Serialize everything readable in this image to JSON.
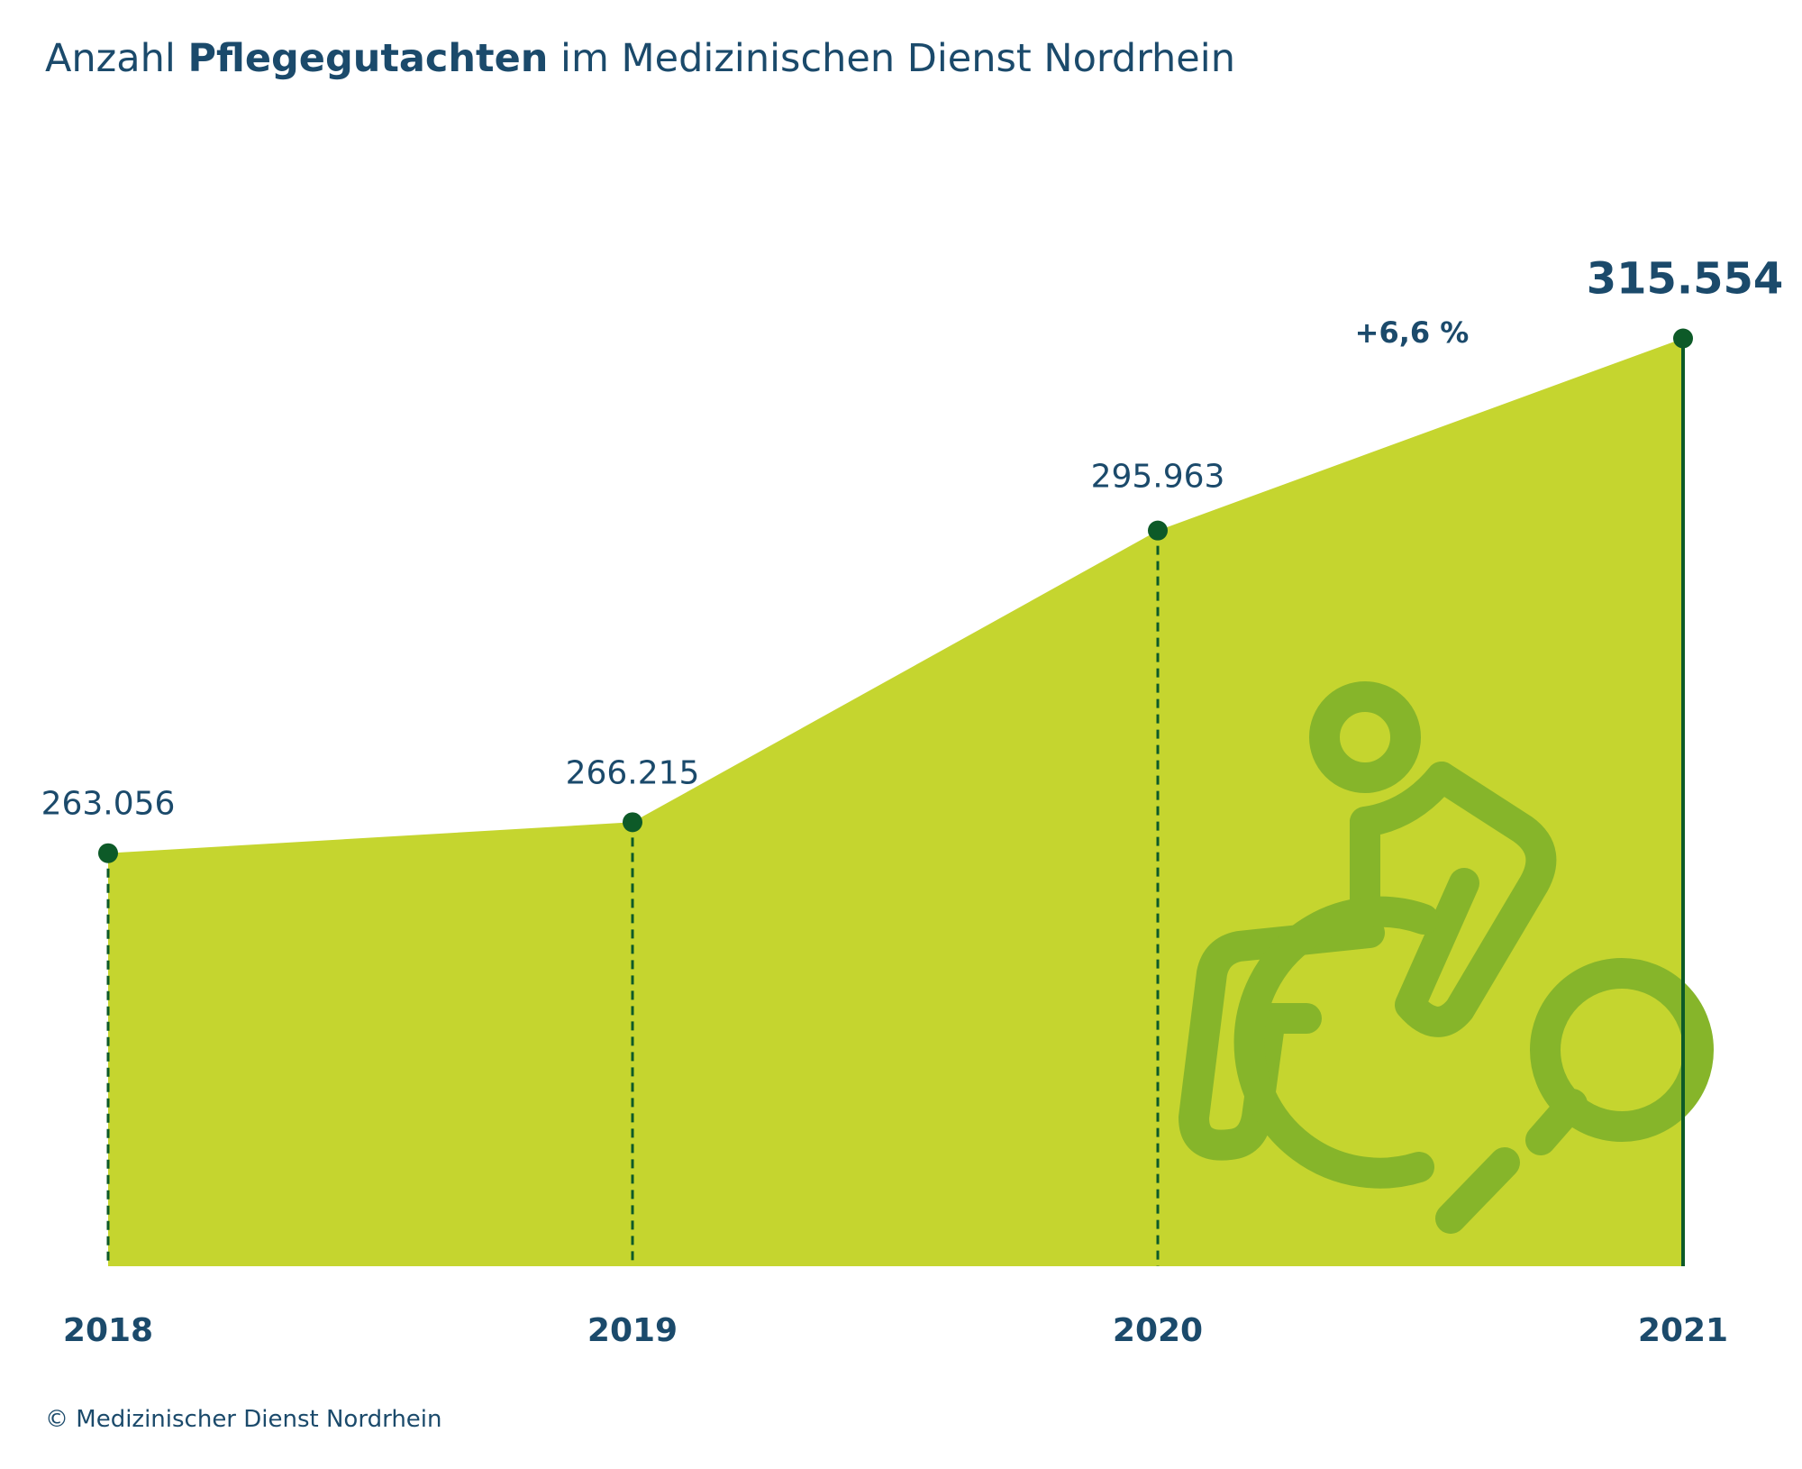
{
  "title": {
    "prefix": "Anzahl ",
    "bold": "Pflegegutachten",
    "suffix": " im Medizinischen Dienst Nordrhein"
  },
  "footer": "© Medizinischer Dienst Nordrhein",
  "colors": {
    "area": "#c5d52f",
    "point": "#0d5a28",
    "text": "#1b4a6b",
    "icon": "#86b52a"
  },
  "icon": "wheelchair-magnifier-icon",
  "chart_data": {
    "type": "area",
    "title": "Anzahl Pflegegutachten im Medizinischen Dienst Nordrhein",
    "categories": [
      "2018",
      "2019",
      "2020",
      "2021"
    ],
    "values": [
      263056,
      266215,
      295963,
      315554
    ],
    "value_labels": [
      "263.056",
      "266.215",
      "295.963",
      "315.554"
    ],
    "annotation": "+6,6 %",
    "xlabel": "",
    "ylabel": "",
    "grid": false
  }
}
